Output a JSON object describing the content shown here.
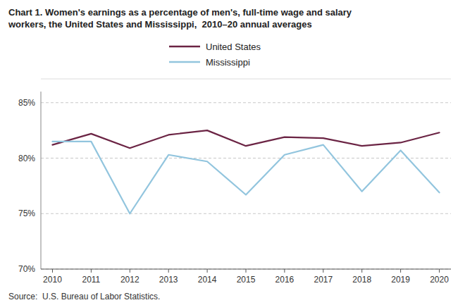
{
  "chart_data": {
    "type": "line",
    "title": "Chart 1. Women's earnings as a percentage of men's, full-time wage and salary\nworkers, the United States and Mississippi,  2010–20 annual averages",
    "source": "Source:  U.S. Bureau of Labor Statistics.",
    "x": [
      2010,
      2011,
      2012,
      2013,
      2014,
      2015,
      2016,
      2017,
      2018,
      2019,
      2020
    ],
    "series": [
      {
        "name": "United States",
        "color": "#6b2444",
        "values": [
          81.2,
          82.2,
          80.9,
          82.1,
          82.5,
          81.1,
          81.9,
          81.8,
          81.1,
          81.4,
          82.3
        ]
      },
      {
        "name": "Mississippi",
        "color": "#92c5de",
        "values": [
          81.5,
          81.5,
          75.0,
          80.3,
          79.7,
          76.7,
          80.3,
          81.2,
          77.0,
          80.7,
          76.9
        ]
      }
    ],
    "xlim": [
      2009.7,
      2020.3
    ],
    "xticks": [
      2010,
      2011,
      2012,
      2013,
      2014,
      2015,
      2016,
      2017,
      2018,
      2019,
      2020
    ],
    "ylim": [
      70,
      86
    ],
    "yticks": [
      {
        "value": 70,
        "label": "70%"
      },
      {
        "value": 75,
        "label": "75%"
      },
      {
        "value": 80,
        "label": "80%"
      },
      {
        "value": 85,
        "label": "85%"
      }
    ],
    "grid": true,
    "legend": "top"
  }
}
